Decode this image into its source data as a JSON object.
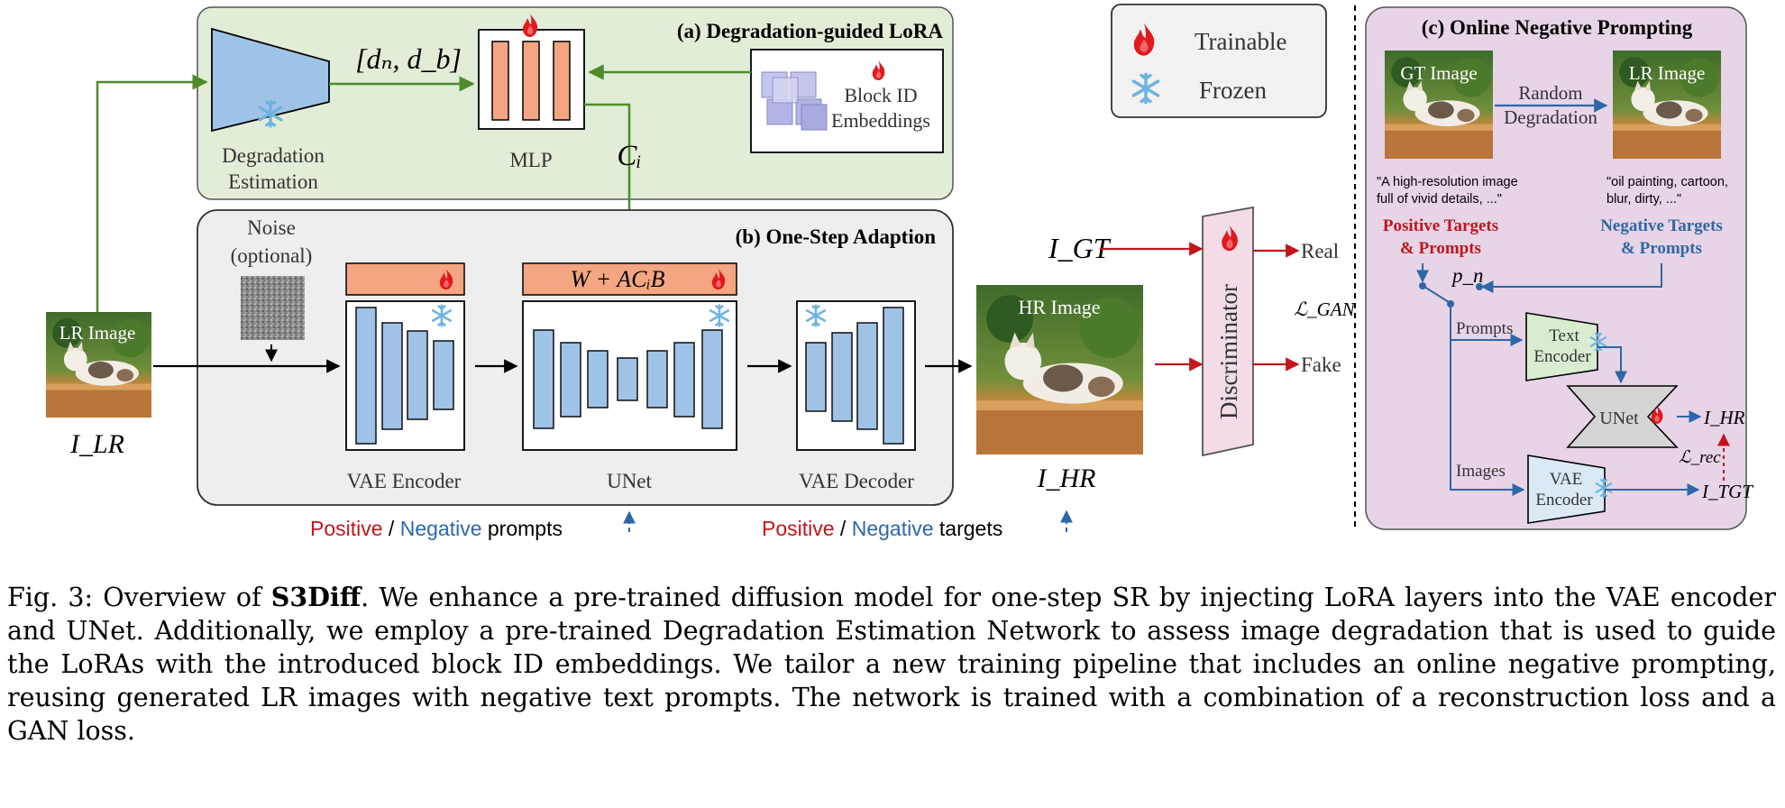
{
  "figure": {
    "panel_a": {
      "title": "(a) Degradation-guided LoRA"
    },
    "panel_b": {
      "title": "(b) One-Step Adaption"
    },
    "panel_c": {
      "title": "(c) Online Negative Prompting"
    },
    "legend": {
      "trainable": "Trainable",
      "frozen": "Frozen"
    },
    "degradation": {
      "line1": "Degradation",
      "line2": "Estimation"
    },
    "dn_db": "[dₙ, d_b]",
    "mlp": "MLP",
    "ci": "Cᵢ",
    "block_id": {
      "line1": "Block ID",
      "line2": "Embeddings"
    },
    "noise": {
      "line1": "Noise",
      "line2": "(optional)"
    },
    "lora_formula": "W + ACᵢB",
    "vae_encoder": "VAE Encoder",
    "unet": "UNet",
    "vae_decoder": "VAE Decoder",
    "lr_image": "LR Image",
    "i_lr": "I_LR",
    "hr_image": "HR Image",
    "i_hr": "I_HR",
    "i_gt": "I_GT",
    "discriminator": "Discriminator",
    "real": "Real",
    "fake": "Fake",
    "l_gan": "ℒ_GAN",
    "prompts_caption": {
      "positive": "Positive",
      "sep": " / ",
      "negative": "Negative",
      "rest": " prompts"
    },
    "targets_caption": {
      "positive": "Positive",
      "sep": " / ",
      "negative": "Negative",
      "rest": " targets"
    },
    "c_panel": {
      "gt_image": "GT Image",
      "lr_image": "LR Image",
      "random": "Random",
      "degradation": "Degradation",
      "pos_quote1": "\"A high-resolution image",
      "pos_quote2": "full of vivid details, ...\"",
      "neg_quote1": "\"oil painting, cartoon,",
      "neg_quote2": "blur, dirty, ...\"",
      "pos_targets1": "Positive Targets",
      "pos_targets2": "& Prompts",
      "neg_targets1": "Negative Targets",
      "neg_targets2": "& Prompts",
      "pn": "p_n",
      "prompts": "Prompts",
      "images": "Images",
      "text_encoder1": "Text",
      "text_encoder2": "Encoder",
      "unet": "UNet",
      "vae_encoder1": "VAE",
      "vae_encoder2": "Encoder",
      "i_hr": "I_HR",
      "l_rec": "ℒ_rec",
      "i_tgt": "I_TGT"
    },
    "colors": {
      "green": "#4e8c2a",
      "red": "#c0161b",
      "blue": "#2e67a8",
      "panel_a_bg": "#e2edd8",
      "panel_c_bg": "#e7d4e6"
    }
  },
  "caption": {
    "prefix": "Fig. 3: Overview of ",
    "name": "S3Diff",
    "text": ". We enhance a pre-trained diffusion model for one-step SR by injecting LoRA layers into the VAE encoder and UNet. Additionally, we employ a pre-trained Degradation Estimation Network to assess image degradation that is used to guide the LoRAs with the introduced block ID embeddings. We tailor a new training pipeline that includes an online negative prompting, reusing generated LR images with negative text prompts. The network is trained with a combination of a reconstruction loss and a GAN loss."
  }
}
